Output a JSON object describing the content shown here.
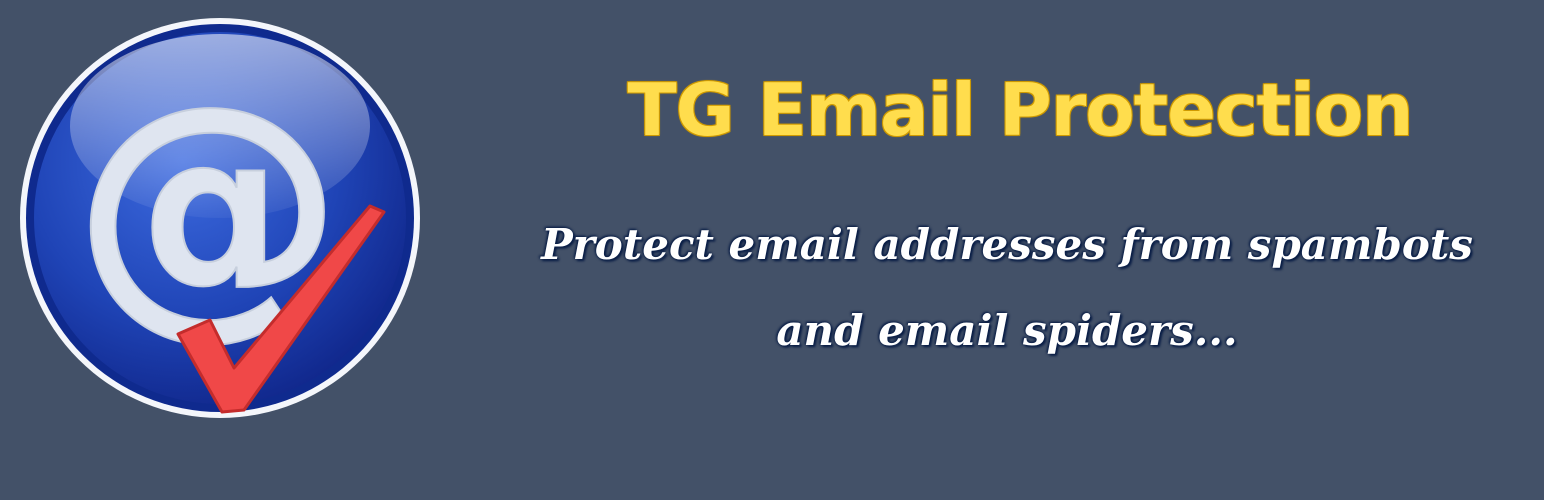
{
  "banner": {
    "title": "TG Email Protection",
    "tagline_line1": "Protect email addresses from spambots",
    "tagline_line2": "and email spiders...",
    "colors": {
      "background": "#435168",
      "title": "#ffdd4d",
      "tagline": "#ffffff",
      "logo_blue": "#1e3fa8",
      "checkmark": "#f04848"
    },
    "logo": {
      "icon": "email-at-check-icon",
      "glyph": "@"
    }
  }
}
